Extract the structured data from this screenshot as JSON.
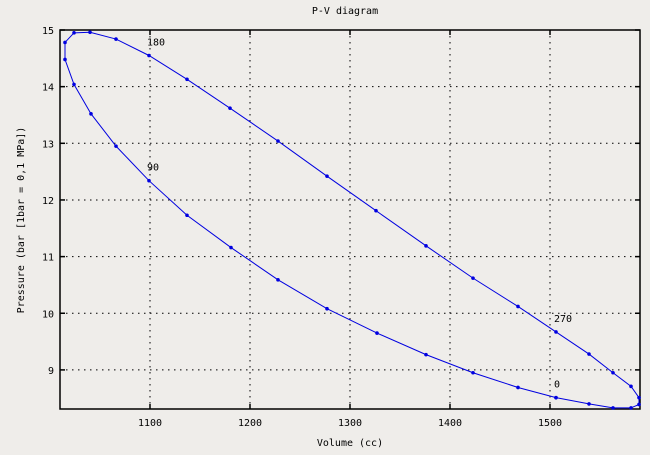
{
  "chart_data": {
    "type": "line",
    "title": "P-V diagram",
    "xlabel": "Volume (cc)",
    "ylabel": "Pressure (bar [1bar = 0,1 MPa])",
    "xlim": [
      1010,
      1590
    ],
    "ylim": [
      8.31,
      15
    ],
    "xticks": [
      1100,
      1200,
      1300,
      1400,
      1500
    ],
    "yticks": [
      9,
      10,
      11,
      12,
      13,
      14,
      15
    ],
    "grid": true,
    "line_color": "#0000e0",
    "series": [
      {
        "x": [
          1506,
          1468,
          1423,
          1376,
          1327,
          1277,
          1228,
          1181,
          1137,
          1099,
          1066,
          1041,
          1024,
          1015,
          1015,
          1024,
          1040,
          1066,
          1099,
          1137,
          1180,
          1228,
          1277,
          1326,
          1376,
          1423,
          1468,
          1506,
          1539,
          1563,
          1581,
          1589,
          1589,
          1581,
          1563,
          1539,
          1506
        ],
        "y": [
          8.51,
          8.69,
          8.95,
          9.27,
          9.65,
          10.08,
          10.59,
          11.16,
          11.73,
          12.34,
          12.95,
          13.52,
          14.04,
          14.48,
          14.78,
          14.95,
          14.96,
          14.84,
          14.55,
          14.13,
          13.62,
          13.04,
          12.42,
          11.81,
          11.19,
          10.62,
          10.12,
          9.67,
          9.28,
          8.95,
          8.71,
          8.51,
          8.39,
          8.33,
          8.33,
          8.4,
          8.51
        ]
      }
    ],
    "annotations": [
      {
        "text": "0",
        "x": 1506,
        "y": 8.51
      },
      {
        "text": "90",
        "x": 1099,
        "y": 12.34
      },
      {
        "text": "180",
        "x": 1099,
        "y": 14.55
      },
      {
        "text": "270",
        "x": 1506,
        "y": 9.67
      }
    ]
  }
}
